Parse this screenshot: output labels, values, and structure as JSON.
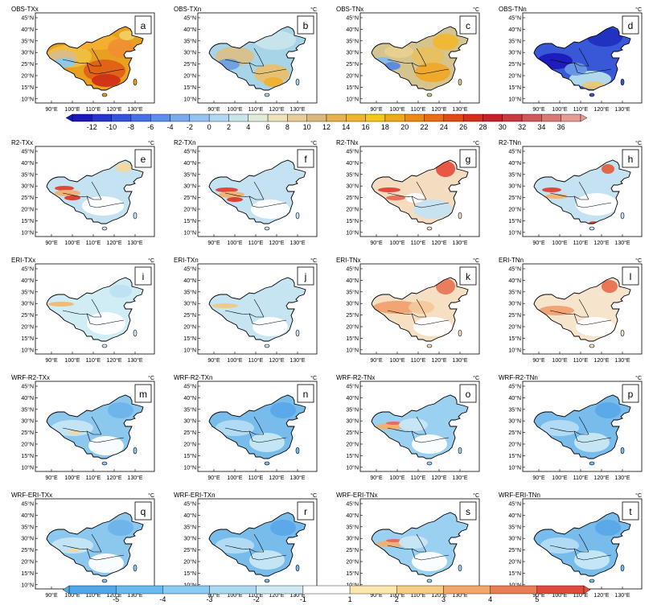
{
  "unit": "°C",
  "lat_ticks": [
    "45°N",
    "40°N",
    "35°N",
    "30°N",
    "25°N",
    "20°N",
    "15°N",
    "10°N"
  ],
  "lon_ticks": [
    "90°E",
    "100°E",
    "110°E",
    "120°E",
    "130°E"
  ],
  "colorbar_top": {
    "labels": [
      "-12",
      "-10",
      "-8",
      "-6",
      "-4",
      "-2",
      "0",
      "2",
      "4",
      "6",
      "8",
      "10",
      "12",
      "14",
      "16",
      "18",
      "20",
      "22",
      "24",
      "26",
      "28",
      "30",
      "32",
      "34",
      "36"
    ],
    "colors": [
      "#1a18b8",
      "#2636cc",
      "#3355dd",
      "#4472e6",
      "#5a8fec",
      "#78aaf0",
      "#94c2f2",
      "#b0d8f2",
      "#c8e6ea",
      "#e0ecd6",
      "#eee2b8",
      "#e6cc96",
      "#deb87a",
      "#e8b04e",
      "#f0b430",
      "#f6c61c",
      "#f0a818",
      "#ec8a16",
      "#e86c16",
      "#e04a14",
      "#d23018",
      "#c42228",
      "#c83a40",
      "#d0585a",
      "#dc7874",
      "#e89a94"
    ]
  },
  "colorbar_bottom": {
    "labels": [
      "-5",
      "-4",
      "-3",
      "-2",
      "-1",
      "1",
      "2",
      "3",
      "4",
      "5"
    ],
    "colors": [
      "#4fa8e8",
      "#6bbaee",
      "#8ccbf2",
      "#aadaf2",
      "#cfeaf2",
      "#ffffff",
      "#fbe8b0",
      "#f6cc86",
      "#f0a86a",
      "#ea7c56",
      "#e04a3e"
    ]
  },
  "panels": [
    {
      "title": "OBS-TXx",
      "letter": "a",
      "unit": "",
      "scheme": "obs_txx"
    },
    {
      "title": "OBS-TXn",
      "letter": "b",
      "unit": "°C",
      "scheme": "obs_txn"
    },
    {
      "title": "OBS-TNx",
      "letter": "c",
      "unit": "°C",
      "scheme": "obs_tnx"
    },
    {
      "title": "OBS-TNn",
      "letter": "d",
      "unit": "°C",
      "scheme": "obs_tnn"
    },
    {
      "title": "R2-TXx",
      "letter": "e",
      "unit": "°C",
      "scheme": "r2_txx"
    },
    {
      "title": "R2-TXn",
      "letter": "f",
      "unit": "°C",
      "scheme": "r2_txn"
    },
    {
      "title": "R2-TNx",
      "letter": "g",
      "unit": "°C",
      "scheme": "r2_tnx"
    },
    {
      "title": "R2-TNn",
      "letter": "h",
      "unit": "°C",
      "scheme": "r2_tnn"
    },
    {
      "title": "ERI-TXx",
      "letter": "i",
      "unit": "°C",
      "scheme": "eri_txx"
    },
    {
      "title": "ERI-TXn",
      "letter": "j",
      "unit": "°C",
      "scheme": "eri_txn"
    },
    {
      "title": "ERI-TNx",
      "letter": "k",
      "unit": "°C",
      "scheme": "eri_tnx"
    },
    {
      "title": "ERI-TNn",
      "letter": "l",
      "unit": "°C",
      "scheme": "eri_tnn"
    },
    {
      "title": "WRF-R2-TXx",
      "letter": "m",
      "unit": "°C",
      "scheme": "wrf_cool"
    },
    {
      "title": "WRF-R2-TXn",
      "letter": "n",
      "unit": "°C",
      "scheme": "wrf_cool2"
    },
    {
      "title": "WRF-R2-TNx",
      "letter": "o",
      "unit": "°C",
      "scheme": "wrf_tnx"
    },
    {
      "title": "WRF-R2-TNn",
      "letter": "p",
      "unit": "°C",
      "scheme": "wrf_cool2"
    },
    {
      "title": "WRF-ERI-TXx",
      "letter": "q",
      "unit": "°C",
      "scheme": "wrf_cool"
    },
    {
      "title": "WRF-ERI-TXn",
      "letter": "r",
      "unit": "°C",
      "scheme": "wrf_cool2"
    },
    {
      "title": "WRF-ERI-TNx",
      "letter": "s",
      "unit": "°C",
      "scheme": "wrf_tnx"
    },
    {
      "title": "WRF-ERI-TNn",
      "letter": "t",
      "unit": "°C",
      "scheme": "wrf_cool2"
    }
  ]
}
